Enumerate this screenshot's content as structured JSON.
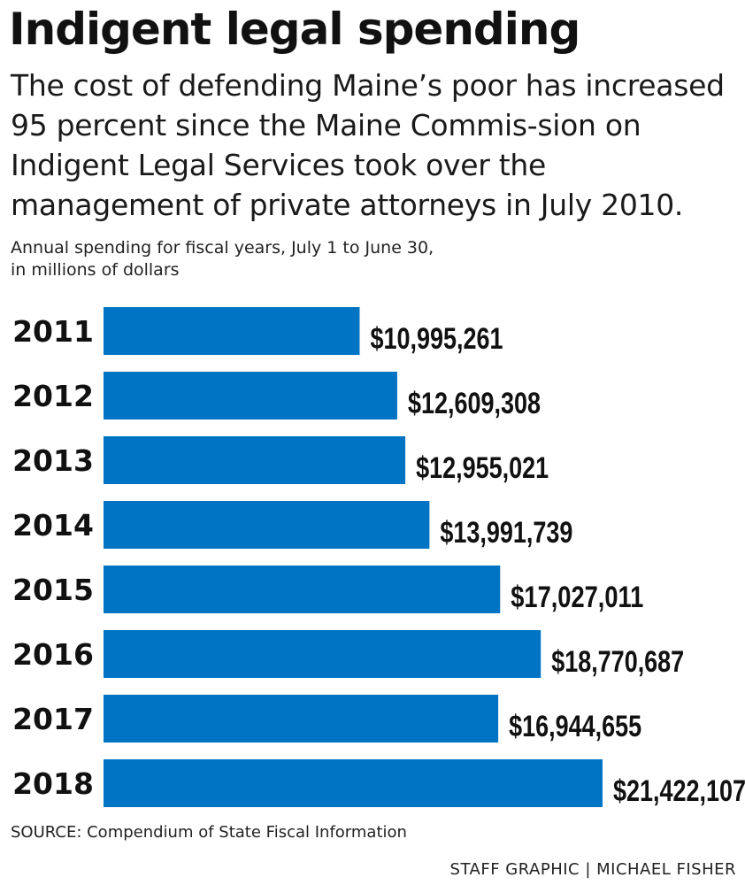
{
  "chart_data": {
    "type": "bar",
    "orientation": "horizontal",
    "title": "Indigent legal spending",
    "subtitle": "The cost of defending Maine’s poor has increased 95 percent since the Maine Commis-sion on Indigent Legal Services took over the management of private attorneys in July 2010.",
    "axis_note_line1": "Annual spending for fiscal years, July 1 to June 30,",
    "axis_note_line2": "in millions of dollars",
    "categories": [
      "2011",
      "2012",
      "2013",
      "2014",
      "2015",
      "2016",
      "2017",
      "2018"
    ],
    "values": [
      10995261,
      12609308,
      12955021,
      13991739,
      17027011,
      18770687,
      16944655,
      21422107
    ],
    "value_labels": [
      "$10,995,261",
      "$12,609,308",
      "$12,955,021",
      "$13,991,739",
      "$17,027,011",
      "$18,770,687",
      "$16,944,655",
      "$21,422,107"
    ],
    "bar_color": "#0074c4",
    "grid": false,
    "legend": "none"
  },
  "source": "SOURCE: Compendium of State Fiscal Information",
  "credit": "STAFF GRAPHIC | MICHAEL FISHER"
}
